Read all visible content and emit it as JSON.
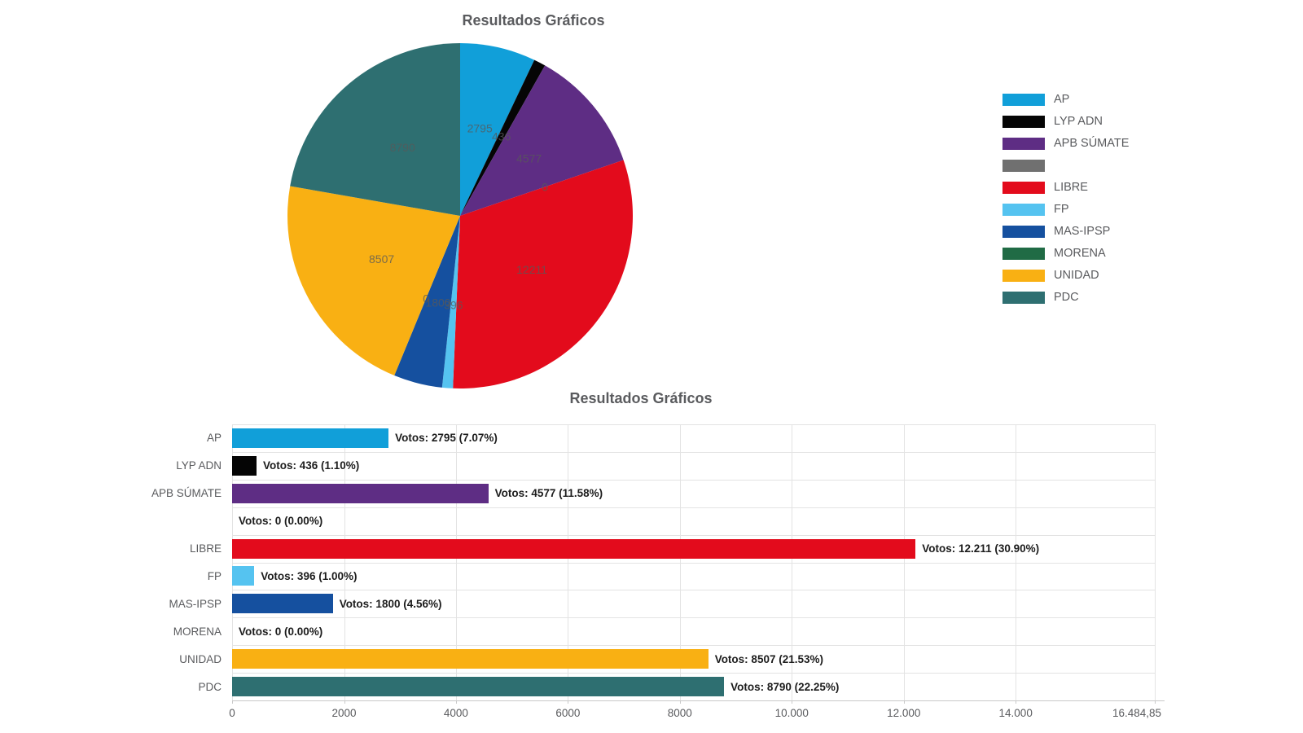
{
  "chart_data": [
    {
      "type": "pie",
      "title": "Resultados Gráficos",
      "legend_position": "right",
      "start_angle_deg": 0,
      "direction": "clockwise",
      "series": [
        {
          "name": "AP",
          "value": 2795,
          "label": "2795",
          "color": "#119fd9"
        },
        {
          "name": "LYP ADN",
          "value": 436,
          "label": "436",
          "color": "#050505"
        },
        {
          "name": "APB SÚMATE",
          "value": 4577,
          "label": "4577",
          "color": "#5e2d84"
        },
        {
          "name": "",
          "value": 0,
          "label": "0",
          "color": "#707070"
        },
        {
          "name": "LIBRE",
          "value": 12211,
          "label": "12211",
          "color": "#e30b1c"
        },
        {
          "name": "FP",
          "value": 396,
          "label": "396",
          "color": "#55c3f0"
        },
        {
          "name": "MAS-IPSP",
          "value": 1800,
          "label": "1800",
          "color": "#15509f"
        },
        {
          "name": "MORENA",
          "value": 0,
          "label": "0",
          "color": "#206b45"
        },
        {
          "name": "UNIDAD",
          "value": 8507,
          "label": "8507",
          "color": "#f9b013"
        },
        {
          "name": "PDC",
          "value": 8790,
          "label": "8790",
          "color": "#2e6f71"
        }
      ]
    },
    {
      "type": "bar",
      "title": "Resultados Gráficos",
      "orientation": "horizontal",
      "grid": true,
      "categories": [
        "AP",
        "LYP ADN",
        "APB SÚMATE",
        "",
        "LIBRE",
        "FP",
        "MAS-IPSP",
        "MORENA",
        "UNIDAD",
        "PDC"
      ],
      "values": [
        2795,
        436,
        4577,
        0,
        12211,
        396,
        1800,
        0,
        8507,
        8790
      ],
      "value_labels": [
        "Votos: 2795 (7.07%)",
        "Votos: 436 (1.10%)",
        "Votos: 4577 (11.58%)",
        "Votos: 0 (0.00%)",
        "Votos: 12.211 (30.90%)",
        "Votos: 396 (1.00%)",
        "Votos: 1800 (4.56%)",
        "Votos: 0 (0.00%)",
        "Votos: 8507 (21.53%)",
        "Votos: 8790 (22.25%)"
      ],
      "percentages": [
        "7.07%",
        "1.10%",
        "11.58%",
        "0.00%",
        "30.90%",
        "1.00%",
        "4.56%",
        "0.00%",
        "21.53%",
        "22.25%"
      ],
      "colors": [
        "#119fd9",
        "#050505",
        "#5e2d84",
        "#707070",
        "#e30b1c",
        "#55c3f0",
        "#15509f",
        "#206b45",
        "#f9b013",
        "#2e6f71"
      ],
      "xlim": [
        0,
        16484.85
      ],
      "x_ticks": [
        {
          "value": 0,
          "label": "0"
        },
        {
          "value": 2000,
          "label": "2000"
        },
        {
          "value": 4000,
          "label": "4000"
        },
        {
          "value": 6000,
          "label": "6000"
        },
        {
          "value": 8000,
          "label": "8000"
        },
        {
          "value": 10000,
          "label": "10.000"
        },
        {
          "value": 12000,
          "label": "12.000"
        },
        {
          "value": 14000,
          "label": "14.000"
        },
        {
          "value": 16484.85,
          "label": "16.484,85"
        }
      ]
    }
  ]
}
